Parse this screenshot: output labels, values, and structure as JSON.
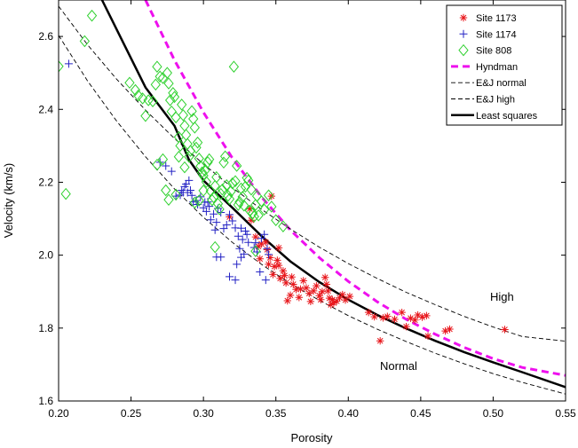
{
  "chart_data": {
    "type": "scatter",
    "xlabel": "Porosity",
    "ylabel": "Velocity (km/s)",
    "xlim": [
      0.2,
      0.55
    ],
    "ylim": [
      1.6,
      2.7
    ],
    "xticks": [
      0.2,
      0.25,
      0.3,
      0.35,
      0.4,
      0.45,
      0.5,
      0.55
    ],
    "xtick_labels": [
      "0.20",
      "0.25",
      "0.30",
      "0.35",
      "0.40",
      "0.45",
      "0.50",
      "0.55"
    ],
    "yticks": [
      1.6,
      1.8,
      2.0,
      2.2,
      2.4,
      2.6
    ],
    "ytick_labels": [
      "1.6",
      "1.8",
      "2.0",
      "2.2",
      "2.4",
      "2.6"
    ],
    "grid": false,
    "legend_position": "top-right",
    "annotations": [
      {
        "text": "High",
        "x": 0.5,
        "y": 1.865
      },
      {
        "text": "Normal",
        "x": 0.425,
        "y": 1.725
      }
    ],
    "series": [
      {
        "name": "Site 1173",
        "kind": "points",
        "marker": "asterisk",
        "color": "#e8161b",
        "points": [
          [
            0.508,
            1.796
          ],
          [
            0.47,
            1.797
          ],
          [
            0.467,
            1.792
          ],
          [
            0.455,
            1.778
          ],
          [
            0.454,
            1.834
          ],
          [
            0.451,
            1.83
          ],
          [
            0.448,
            1.836
          ],
          [
            0.446,
            1.822
          ],
          [
            0.443,
            1.827
          ],
          [
            0.44,
            1.804
          ],
          [
            0.437,
            1.843
          ],
          [
            0.432,
            1.824
          ],
          [
            0.427,
            1.832
          ],
          [
            0.424,
            1.828
          ],
          [
            0.422,
            1.765
          ],
          [
            0.418,
            1.831
          ],
          [
            0.414,
            1.843
          ],
          [
            0.401,
            1.887
          ],
          [
            0.398,
            1.877
          ],
          [
            0.396,
            1.892
          ],
          [
            0.394,
            1.883
          ],
          [
            0.392,
            1.874
          ],
          [
            0.39,
            1.869
          ],
          [
            0.389,
            1.878
          ],
          [
            0.388,
            1.864
          ],
          [
            0.387,
            1.882
          ],
          [
            0.386,
            1.902
          ],
          [
            0.385,
            1.92
          ],
          [
            0.384,
            1.939
          ],
          [
            0.382,
            1.9
          ],
          [
            0.381,
            1.878
          ],
          [
            0.38,
            1.889
          ],
          [
            0.378,
            1.916
          ],
          [
            0.376,
            1.902
          ],
          [
            0.374,
            1.873
          ],
          [
            0.373,
            1.895
          ],
          [
            0.371,
            1.91
          ],
          [
            0.369,
            1.93
          ],
          [
            0.367,
            1.907
          ],
          [
            0.366,
            1.884
          ],
          [
            0.364,
            1.906
          ],
          [
            0.362,
            1.92
          ],
          [
            0.361,
            1.94
          ],
          [
            0.36,
            1.89
          ],
          [
            0.358,
            1.875
          ],
          [
            0.357,
            1.924
          ],
          [
            0.356,
            1.944
          ],
          [
            0.355,
            1.957
          ],
          [
            0.353,
            1.936
          ],
          [
            0.352,
            1.972
          ],
          [
            0.351,
            1.986
          ],
          [
            0.349,
            1.969
          ],
          [
            0.348,
            1.947
          ],
          [
            0.346,
            1.993
          ],
          [
            0.345,
            1.975
          ],
          [
            0.344,
            2.015
          ],
          [
            0.343,
            2.036
          ],
          [
            0.34,
            2.031
          ],
          [
            0.338,
            2.024
          ],
          [
            0.336,
            2.05
          ],
          [
            0.333,
            2.096
          ],
          [
            0.332,
            2.127
          ],
          [
            0.347,
            2.162
          ],
          [
            0.318,
            2.105
          ],
          [
            0.352,
            2.02
          ],
          [
            0.339,
            1.99
          ]
        ]
      },
      {
        "name": "Site 1174",
        "kind": "points",
        "marker": "plus",
        "color": "#2322c4",
        "points": [
          [
            0.207,
            2.525
          ],
          [
            0.27,
            2.255
          ],
          [
            0.274,
            2.245
          ],
          [
            0.278,
            2.23
          ],
          [
            0.281,
            2.162
          ],
          [
            0.284,
            2.165
          ],
          [
            0.285,
            2.178
          ],
          [
            0.286,
            2.172
          ],
          [
            0.287,
            2.188
          ],
          [
            0.288,
            2.195
          ],
          [
            0.289,
            2.172
          ],
          [
            0.29,
            2.205
          ],
          [
            0.291,
            2.178
          ],
          [
            0.292,
            2.164
          ],
          [
            0.293,
            2.146
          ],
          [
            0.295,
            2.15
          ],
          [
            0.296,
            2.139
          ],
          [
            0.298,
            2.16
          ],
          [
            0.3,
            2.13
          ],
          [
            0.301,
            2.145
          ],
          [
            0.302,
            2.12
          ],
          [
            0.304,
            2.134
          ],
          [
            0.305,
            2.097
          ],
          [
            0.307,
            2.113
          ],
          [
            0.308,
            2.069
          ],
          [
            0.309,
            2.09
          ],
          [
            0.31,
            2.128
          ],
          [
            0.312,
            2.117
          ],
          [
            0.314,
            2.073
          ],
          [
            0.316,
            2.083
          ],
          [
            0.318,
            2.111
          ],
          [
            0.32,
            2.094
          ],
          [
            0.322,
            2.075
          ],
          [
            0.324,
            2.052
          ],
          [
            0.326,
            2.074
          ],
          [
            0.327,
            2.043
          ],
          [
            0.329,
            2.066
          ],
          [
            0.33,
            2.057
          ],
          [
            0.331,
            2.035
          ],
          [
            0.328,
            2.003
          ],
          [
            0.326,
            1.994
          ],
          [
            0.325,
            2.018
          ],
          [
            0.323,
            1.975
          ],
          [
            0.322,
            1.932
          ],
          [
            0.318,
            1.941
          ],
          [
            0.312,
            1.995
          ],
          [
            0.309,
            1.995
          ],
          [
            0.335,
            2.021
          ],
          [
            0.336,
            2.034
          ],
          [
            0.337,
            2.009
          ],
          [
            0.34,
            2.046
          ],
          [
            0.342,
            2.057
          ],
          [
            0.344,
            2.018
          ],
          [
            0.345,
            2.002
          ],
          [
            0.343,
            1.932
          ],
          [
            0.339,
            1.954
          ],
          [
            0.303,
            2.146
          ]
        ]
      },
      {
        "name": "Site 808",
        "kind": "points",
        "marker": "diamond",
        "color": "#2fd12f",
        "points": [
          [
            0.223,
            2.657
          ],
          [
            0.218,
            2.587
          ],
          [
            0.2,
            2.518
          ],
          [
            0.205,
            2.168
          ],
          [
            0.249,
            2.473
          ],
          [
            0.253,
            2.453
          ],
          [
            0.255,
            2.438
          ],
          [
            0.258,
            2.43
          ],
          [
            0.26,
            2.382
          ],
          [
            0.262,
            2.425
          ],
          [
            0.265,
            2.422
          ],
          [
            0.267,
            2.468
          ],
          [
            0.268,
            2.517
          ],
          [
            0.27,
            2.49
          ],
          [
            0.272,
            2.486
          ],
          [
            0.275,
            2.5
          ],
          [
            0.276,
            2.471
          ],
          [
            0.277,
            2.425
          ],
          [
            0.278,
            2.394
          ],
          [
            0.279,
            2.445
          ],
          [
            0.28,
            2.434
          ],
          [
            0.281,
            2.378
          ],
          [
            0.283,
            2.324
          ],
          [
            0.284,
            2.3
          ],
          [
            0.285,
            2.413
          ],
          [
            0.286,
            2.384
          ],
          [
            0.287,
            2.355
          ],
          [
            0.288,
            2.33
          ],
          [
            0.289,
            2.305
          ],
          [
            0.29,
            2.27
          ],
          [
            0.291,
            2.286
          ],
          [
            0.292,
            2.395
          ],
          [
            0.293,
            2.374
          ],
          [
            0.294,
            2.35
          ],
          [
            0.295,
            2.295
          ],
          [
            0.296,
            2.309
          ],
          [
            0.297,
            2.265
          ],
          [
            0.298,
            2.244
          ],
          [
            0.299,
            2.227
          ],
          [
            0.3,
            2.218
          ],
          [
            0.301,
            2.232
          ],
          [
            0.302,
            2.201
          ],
          [
            0.303,
            2.255
          ],
          [
            0.304,
            2.263
          ],
          [
            0.305,
            2.176
          ],
          [
            0.306,
            2.151
          ],
          [
            0.307,
            2.159
          ],
          [
            0.308,
            2.19
          ],
          [
            0.309,
            2.214
          ],
          [
            0.31,
            2.141
          ],
          [
            0.311,
            2.126
          ],
          [
            0.312,
            2.168
          ],
          [
            0.313,
            2.18
          ],
          [
            0.314,
            2.254
          ],
          [
            0.315,
            2.271
          ],
          [
            0.316,
            2.192
          ],
          [
            0.317,
            2.163
          ],
          [
            0.318,
            2.154
          ],
          [
            0.319,
            2.175
          ],
          [
            0.32,
            2.197
          ],
          [
            0.321,
            2.517
          ],
          [
            0.322,
            2.203
          ],
          [
            0.323,
            2.245
          ],
          [
            0.324,
            2.138
          ],
          [
            0.325,
            2.146
          ],
          [
            0.326,
            2.183
          ],
          [
            0.327,
            2.16
          ],
          [
            0.328,
            2.136
          ],
          [
            0.329,
            2.188
          ],
          [
            0.33,
            2.212
          ],
          [
            0.331,
            2.205
          ],
          [
            0.332,
            2.122
          ],
          [
            0.333,
            2.18
          ],
          [
            0.334,
            2.115
          ],
          [
            0.335,
            2.106
          ],
          [
            0.336,
            2.138
          ],
          [
            0.337,
            2.162
          ],
          [
            0.338,
            2.109
          ],
          [
            0.34,
            2.148
          ],
          [
            0.342,
            2.125
          ],
          [
            0.345,
            2.164
          ],
          [
            0.347,
            2.133
          ],
          [
            0.35,
            2.096
          ],
          [
            0.355,
            2.079
          ],
          [
            0.287,
            2.241
          ],
          [
            0.283,
            2.27
          ],
          [
            0.281,
            2.166
          ],
          [
            0.276,
            2.152
          ],
          [
            0.274,
            2.178
          ],
          [
            0.272,
            2.263
          ],
          [
            0.268,
            2.248
          ],
          [
            0.294,
            2.144
          ],
          [
            0.297,
            2.15
          ],
          [
            0.3,
            2.177
          ],
          [
            0.308,
            2.022
          ],
          [
            0.336,
            2.011
          ]
        ]
      },
      {
        "name": "Hyndman",
        "kind": "line",
        "style": "dashed-bold",
        "color": "#ee10ee",
        "points": [
          [
            0.26,
            2.7
          ],
          [
            0.28,
            2.535
          ],
          [
            0.3,
            2.392
          ],
          [
            0.32,
            2.266
          ],
          [
            0.34,
            2.16
          ],
          [
            0.36,
            2.069
          ],
          [
            0.38,
            1.993
          ],
          [
            0.4,
            1.928
          ],
          [
            0.42,
            1.872
          ],
          [
            0.44,
            1.824
          ],
          [
            0.46,
            1.783
          ],
          [
            0.48,
            1.747
          ],
          [
            0.5,
            1.716
          ],
          [
            0.52,
            1.692
          ],
          [
            0.55,
            1.67
          ]
        ]
      },
      {
        "name": "E&J normal",
        "kind": "line",
        "style": "dashed-thin",
        "color": "#000000",
        "points": [
          [
            0.2,
            2.603
          ],
          [
            0.22,
            2.478
          ],
          [
            0.24,
            2.368
          ],
          [
            0.26,
            2.27
          ],
          [
            0.28,
            2.182
          ],
          [
            0.3,
            2.104
          ],
          [
            0.32,
            2.035
          ],
          [
            0.34,
            1.975
          ],
          [
            0.36,
            1.922
          ],
          [
            0.38,
            1.876
          ],
          [
            0.4,
            1.834
          ],
          [
            0.42,
            1.797
          ],
          [
            0.44,
            1.763
          ],
          [
            0.46,
            1.731
          ],
          [
            0.48,
            1.702
          ],
          [
            0.5,
            1.675
          ],
          [
            0.52,
            1.651
          ],
          [
            0.55,
            1.619
          ]
        ]
      },
      {
        "name": "E&J high",
        "kind": "line",
        "style": "dashed-thin",
        "color": "#000000",
        "points": [
          [
            0.2,
            2.683
          ],
          [
            0.22,
            2.577
          ],
          [
            0.24,
            2.483
          ],
          [
            0.26,
            2.398
          ],
          [
            0.28,
            2.32
          ],
          [
            0.3,
            2.25
          ],
          [
            0.32,
            2.185
          ],
          [
            0.34,
            2.126
          ],
          [
            0.36,
            2.072
          ],
          [
            0.38,
            2.022
          ],
          [
            0.4,
            1.977
          ],
          [
            0.42,
            1.936
          ],
          [
            0.44,
            1.898
          ],
          [
            0.46,
            1.864
          ],
          [
            0.48,
            1.832
          ],
          [
            0.5,
            1.803
          ],
          [
            0.52,
            1.777
          ],
          [
            0.55,
            1.764
          ]
        ]
      },
      {
        "name": "Least squares",
        "kind": "line",
        "style": "solid-bold",
        "color": "#000000",
        "points": [
          [
            0.23,
            2.7
          ],
          [
            0.245,
            2.58
          ],
          [
            0.26,
            2.46
          ],
          [
            0.28,
            2.355
          ],
          [
            0.29,
            2.262
          ],
          [
            0.3,
            2.205
          ],
          [
            0.32,
            2.13
          ],
          [
            0.34,
            2.053
          ],
          [
            0.36,
            1.983
          ],
          [
            0.38,
            1.926
          ],
          [
            0.4,
            1.878
          ],
          [
            0.42,
            1.836
          ],
          [
            0.44,
            1.799
          ],
          [
            0.46,
            1.765
          ],
          [
            0.48,
            1.734
          ],
          [
            0.5,
            1.706
          ],
          [
            0.52,
            1.679
          ],
          [
            0.55,
            1.638
          ]
        ]
      }
    ]
  }
}
